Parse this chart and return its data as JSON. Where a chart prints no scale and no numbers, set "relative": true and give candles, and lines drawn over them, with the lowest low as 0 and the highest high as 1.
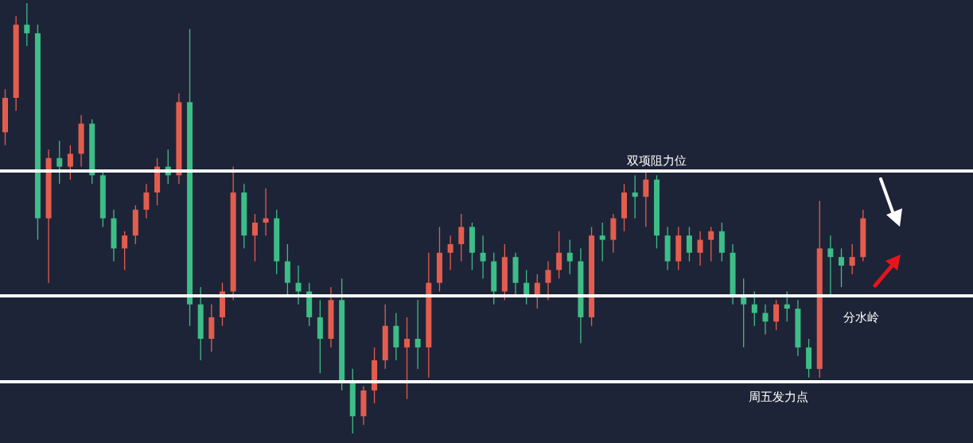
{
  "chart_data": {
    "type": "candlestick",
    "relative": true,
    "tick_labels": false,
    "grid": false,
    "legend": false,
    "categories": [
      null,
      null,
      null,
      null,
      null,
      null,
      null,
      null,
      null,
      null,
      null,
      null,
      null,
      null,
      null,
      null,
      null,
      null,
      null,
      null,
      null,
      null,
      null,
      null,
      null,
      null,
      null,
      null,
      null,
      null,
      null,
      null,
      null,
      null,
      null,
      null,
      null,
      null,
      null,
      null,
      null,
      null,
      null,
      null,
      null,
      null,
      null,
      null,
      null,
      null,
      null,
      null,
      null,
      null,
      null,
      null,
      null,
      null,
      null,
      null,
      null,
      null,
      null,
      null,
      null,
      null,
      null,
      null,
      null,
      null,
      null,
      null,
      null,
      null,
      null,
      null,
      null,
      null,
      null,
      null
    ],
    "ohlc": [
      [
        0.7,
        0.8,
        0.67,
        0.78
      ],
      [
        0.78,
        0.97,
        0.75,
        0.95
      ],
      [
        0.95,
        1.0,
        0.9,
        0.93
      ],
      [
        0.93,
        0.95,
        0.45,
        0.5
      ],
      [
        0.5,
        0.66,
        0.35,
        0.64
      ],
      [
        0.64,
        0.68,
        0.58,
        0.62
      ],
      [
        0.62,
        0.67,
        0.59,
        0.65
      ],
      [
        0.65,
        0.74,
        0.62,
        0.72
      ],
      [
        0.72,
        0.73,
        0.58,
        0.6
      ],
      [
        0.6,
        0.61,
        0.48,
        0.5
      ],
      [
        0.5,
        0.52,
        0.4,
        0.43
      ],
      [
        0.43,
        0.47,
        0.38,
        0.46
      ],
      [
        0.46,
        0.53,
        0.44,
        0.52
      ],
      [
        0.52,
        0.58,
        0.5,
        0.56
      ],
      [
        0.56,
        0.64,
        0.53,
        0.62
      ],
      [
        0.62,
        0.66,
        0.58,
        0.6
      ],
      [
        0.6,
        0.79,
        0.58,
        0.77
      ],
      [
        0.77,
        0.94,
        0.25,
        0.3
      ],
      [
        0.3,
        0.34,
        0.17,
        0.22
      ],
      [
        0.22,
        0.3,
        0.19,
        0.27
      ],
      [
        0.27,
        0.35,
        0.25,
        0.33
      ],
      [
        0.33,
        0.62,
        0.31,
        0.56
      ],
      [
        0.56,
        0.58,
        0.43,
        0.46
      ],
      [
        0.46,
        0.51,
        0.4,
        0.49
      ],
      [
        0.49,
        0.57,
        0.46,
        0.5
      ],
      [
        0.5,
        0.52,
        0.37,
        0.4
      ],
      [
        0.4,
        0.44,
        0.32,
        0.35
      ],
      [
        0.35,
        0.39,
        0.3,
        0.33
      ],
      [
        0.33,
        0.35,
        0.25,
        0.27
      ],
      [
        0.27,
        0.31,
        0.14,
        0.22
      ],
      [
        0.22,
        0.34,
        0.2,
        0.31
      ],
      [
        0.31,
        0.36,
        0.1,
        0.12
      ],
      [
        0.12,
        0.15,
        0.0,
        0.04
      ],
      [
        0.04,
        0.11,
        0.02,
        0.1
      ],
      [
        0.1,
        0.2,
        0.07,
        0.17
      ],
      [
        0.17,
        0.3,
        0.15,
        0.25
      ],
      [
        0.25,
        0.28,
        0.17,
        0.2
      ],
      [
        0.2,
        0.27,
        0.08,
        0.22
      ],
      [
        0.22,
        0.31,
        0.15,
        0.2
      ],
      [
        0.2,
        0.42,
        0.13,
        0.35
      ],
      [
        0.35,
        0.48,
        0.33,
        0.42
      ],
      [
        0.42,
        0.46,
        0.38,
        0.44
      ],
      [
        0.44,
        0.51,
        0.4,
        0.48
      ],
      [
        0.48,
        0.49,
        0.38,
        0.42
      ],
      [
        0.42,
        0.46,
        0.36,
        0.4
      ],
      [
        0.4,
        0.42,
        0.3,
        0.33
      ],
      [
        0.33,
        0.44,
        0.31,
        0.41
      ],
      [
        0.41,
        0.42,
        0.32,
        0.35
      ],
      [
        0.35,
        0.38,
        0.3,
        0.32
      ],
      [
        0.32,
        0.37,
        0.29,
        0.35
      ],
      [
        0.35,
        0.4,
        0.31,
        0.38
      ],
      [
        0.38,
        0.47,
        0.36,
        0.42
      ],
      [
        0.42,
        0.45,
        0.37,
        0.4
      ],
      [
        0.4,
        0.43,
        0.21,
        0.27
      ],
      [
        0.27,
        0.48,
        0.25,
        0.46
      ],
      [
        0.46,
        0.49,
        0.4,
        0.45
      ],
      [
        0.45,
        0.51,
        0.42,
        0.5
      ],
      [
        0.5,
        0.58,
        0.47,
        0.56
      ],
      [
        0.56,
        0.6,
        0.5,
        0.55
      ],
      [
        0.55,
        0.61,
        0.48,
        0.59
      ],
      [
        0.59,
        0.6,
        0.43,
        0.46
      ],
      [
        0.46,
        0.48,
        0.38,
        0.4
      ],
      [
        0.4,
        0.48,
        0.38,
        0.46
      ],
      [
        0.46,
        0.48,
        0.4,
        0.42
      ],
      [
        0.42,
        0.47,
        0.39,
        0.45
      ],
      [
        0.45,
        0.48,
        0.4,
        0.47
      ],
      [
        0.47,
        0.49,
        0.4,
        0.42
      ],
      [
        0.42,
        0.44,
        0.3,
        0.32
      ],
      [
        0.32,
        0.36,
        0.2,
        0.3
      ],
      [
        0.3,
        0.33,
        0.25,
        0.28
      ],
      [
        0.28,
        0.3,
        0.23,
        0.26
      ],
      [
        0.26,
        0.31,
        0.24,
        0.3
      ],
      [
        0.3,
        0.33,
        0.26,
        0.29
      ],
      [
        0.29,
        0.31,
        0.18,
        0.2
      ],
      [
        0.2,
        0.22,
        0.13,
        0.15
      ],
      [
        0.15,
        0.54,
        0.13,
        0.43
      ],
      [
        0.43,
        0.46,
        0.32,
        0.41
      ],
      [
        0.41,
        0.43,
        0.34,
        0.39
      ],
      [
        0.39,
        0.44,
        0.37,
        0.41
      ],
      [
        0.41,
        0.52,
        0.4,
        0.5
      ]
    ],
    "ref_lines": [
      {
        "axis": "y",
        "value": 0.61,
        "label": "双项阻力位",
        "color": "#ffffff"
      },
      {
        "axis": "y",
        "value": 0.32,
        "label": "分水岭",
        "color": "#ffffff"
      },
      {
        "axis": "y",
        "value": 0.12,
        "label": "周五发力点",
        "color": "#ffffff"
      }
    ]
  }
}
